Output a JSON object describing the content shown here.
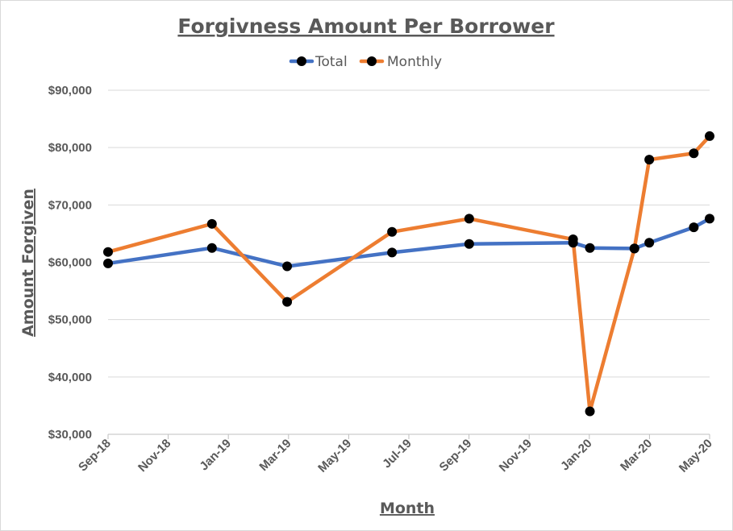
{
  "chart_data": {
    "type": "line",
    "title": "Forgivness Amount Per Borrower",
    "xlabel": "Month",
    "ylabel": "Amount Forgiven",
    "ylim": [
      30000,
      90000
    ],
    "yticks": [
      30000,
      40000,
      50000,
      60000,
      70000,
      80000,
      90000
    ],
    "ytick_labels": [
      "$30,000",
      "$40,000",
      "$50,000",
      "$60,000",
      "$70,000",
      "$80,000",
      "$90,000"
    ],
    "xlim": [
      "2018-09-01",
      "2020-05-01"
    ],
    "xtick_labels": [
      "Sep-18",
      "Nov-18",
      "Jan-19",
      "Mar-19",
      "May-19",
      "Jul-19",
      "Sep-19",
      "Nov-19",
      "Jan-20",
      "Mar-20",
      "May-20"
    ],
    "grid": true,
    "legend_position": "top",
    "series": [
      {
        "name": "Total",
        "color": "#4472c4",
        "points": [
          {
            "x": "2018-09-01",
            "y": 59800
          },
          {
            "x": "2018-12-15",
            "y": 62500
          },
          {
            "x": "2019-03-01",
            "y": 59300
          },
          {
            "x": "2019-06-15",
            "y": 61700
          },
          {
            "x": "2019-09-01",
            "y": 63200
          },
          {
            "x": "2019-12-15",
            "y": 63400
          },
          {
            "x": "2020-01-01",
            "y": 62500
          },
          {
            "x": "2020-02-15",
            "y": 62400
          },
          {
            "x": "2020-03-01",
            "y": 63400
          },
          {
            "x": "2020-04-15",
            "y": 66100
          },
          {
            "x": "2020-05-01",
            "y": 67600
          }
        ]
      },
      {
        "name": "Monthly",
        "color": "#ed7d31",
        "points": [
          {
            "x": "2018-09-01",
            "y": 61800
          },
          {
            "x": "2018-12-15",
            "y": 66700
          },
          {
            "x": "2019-03-01",
            "y": 53100
          },
          {
            "x": "2019-06-15",
            "y": 65300
          },
          {
            "x": "2019-09-01",
            "y": 67600
          },
          {
            "x": "2019-12-15",
            "y": 64000
          },
          {
            "x": "2020-01-01",
            "y": 34000
          },
          {
            "x": "2020-02-15",
            "y": 62400
          },
          {
            "x": "2020-03-01",
            "y": 77900
          },
          {
            "x": "2020-04-15",
            "y": 79000
          },
          {
            "x": "2020-05-01",
            "y": 82000
          }
        ]
      }
    ],
    "marker_color": "#000000",
    "gridline_color": "#d9d9d9",
    "text_color": "#595959"
  }
}
